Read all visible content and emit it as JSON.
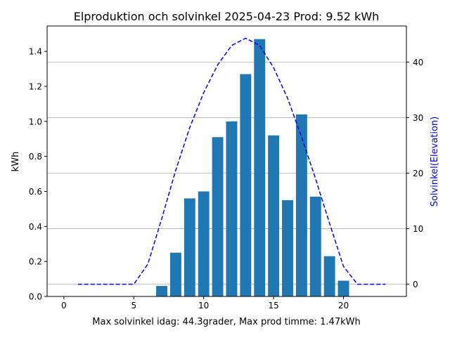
{
  "chart_data": {
    "type": "bar",
    "title": "Elproduktion och solvinkel 2025-04-23 Prod: 9.52 kWh",
    "xlabel": "Max solvinkel idag: 44.3grader, Max prod timme: 1.47kWh",
    "ylabel": "kWh",
    "y2label": "Solvinkel(Elevation)",
    "xlim": [
      -1.2,
      24.5
    ],
    "ylim": [
      0,
      1.545
    ],
    "y2lim": [
      -2.2,
      46.5
    ],
    "xticks": [
      0,
      5,
      10,
      15,
      20
    ],
    "xtick_labels": [
      "0",
      "5",
      "10",
      "15",
      "20"
    ],
    "yticks": [
      0.0,
      0.2,
      0.4,
      0.6,
      0.8,
      1.0,
      1.2,
      1.4
    ],
    "ytick_labels": [
      "0.0",
      "0.2",
      "0.4",
      "0.6",
      "0.8",
      "1.0",
      "1.2",
      "1.4"
    ],
    "y2ticks": [
      0,
      10,
      20,
      30,
      40
    ],
    "y2tick_labels": [
      "0",
      "10",
      "20",
      "30",
      "40"
    ],
    "grid": "horizontal lines on secondary axis",
    "bar_color": "#1f77b4",
    "line_color": "#0000ff",
    "bars": {
      "x": [
        7,
        8,
        9,
        10,
        11,
        12,
        13,
        14,
        15,
        16,
        17,
        18,
        19,
        20
      ],
      "values": [
        0.06,
        0.25,
        0.56,
        0.6,
        0.91,
        1.0,
        1.27,
        1.47,
        0.92,
        0.55,
        1.04,
        0.57,
        0.23,
        0.09
      ]
    },
    "line": {
      "x": [
        1,
        2,
        3,
        4,
        5,
        6,
        7,
        8,
        9,
        10,
        11,
        12,
        13,
        14,
        15,
        16,
        17,
        18,
        19,
        20,
        21,
        22,
        23
      ],
      "values": [
        0,
        0,
        0,
        0,
        0,
        3.6,
        11.8,
        20.5,
        28.2,
        34.5,
        39.5,
        43.0,
        44.3,
        43.0,
        39.0,
        33.5,
        26.5,
        19.0,
        11.0,
        3.2,
        0,
        0,
        0
      ]
    }
  }
}
